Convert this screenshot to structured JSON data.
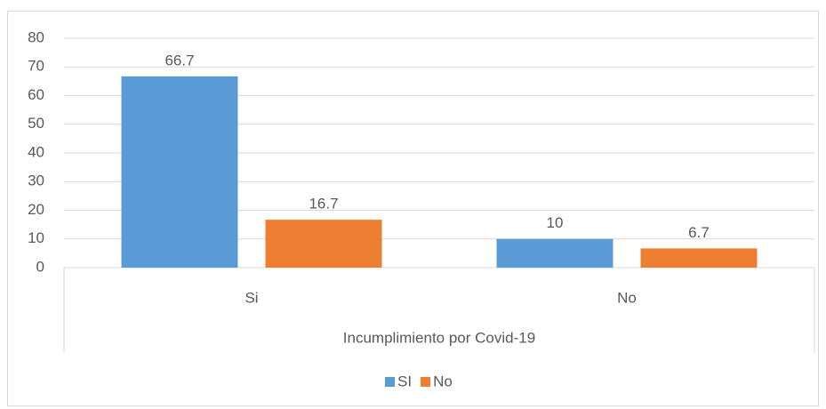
{
  "chart_data": {
    "type": "bar",
    "x_label": "Incumplimiento por Covid-19",
    "categories": [
      "Si",
      "No"
    ],
    "series": [
      {
        "name": "SI",
        "color": "#5b9bd5",
        "values": [
          66.7,
          10
        ]
      },
      {
        "name": "No",
        "color": "#ed7d31",
        "values": [
          16.7,
          6.7
        ]
      }
    ],
    "ylim": [
      0,
      80
    ],
    "yticks": [
      0,
      10,
      20,
      30,
      40,
      50,
      60,
      70,
      80
    ],
    "grid": true,
    "legend": "bottom"
  }
}
